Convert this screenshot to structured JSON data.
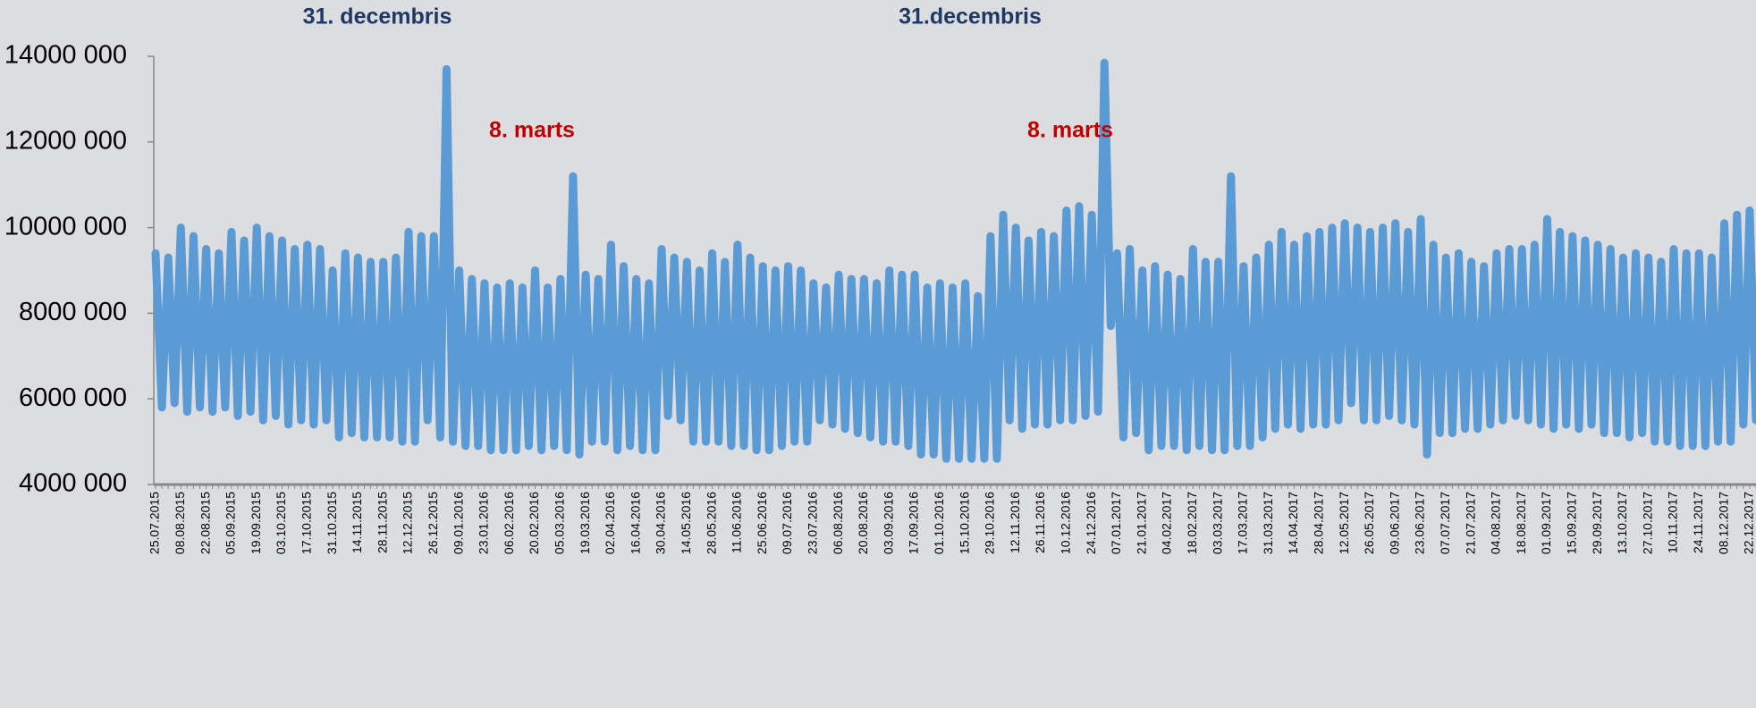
{
  "chart_data": {
    "type": "line",
    "annotations": [
      {
        "text": "31. decembris",
        "color": "#1f3864"
      },
      {
        "text": "8. marts",
        "color": "#c00000"
      },
      {
        "text": "31.decembris",
        "color": "#1f3864"
      },
      {
        "text": "8. marts",
        "color": "#c00000"
      }
    ],
    "categories": [
      "25.07.2015",
      null,
      null,
      null,
      "08.08.2015",
      null,
      null,
      null,
      "22.08.2015",
      null,
      null,
      null,
      "05.09.2015",
      null,
      null,
      null,
      "19.09.2015",
      null,
      null,
      null,
      "03.10.2015",
      null,
      null,
      null,
      "17.10.2015",
      null,
      null,
      null,
      "31.10.2015",
      null,
      null,
      null,
      "14.11.2015",
      null,
      null,
      null,
      "28.11.2015",
      null,
      null,
      null,
      "12.12.2015",
      null,
      null,
      null,
      "26.12.2015",
      null,
      null,
      null,
      "09.01.2016",
      null,
      null,
      null,
      "23.01.2016",
      null,
      null,
      null,
      "06.02.2016",
      null,
      null,
      null,
      "20.02.2016",
      null,
      null,
      null,
      "05.03.2016",
      null,
      null,
      null,
      "19.03.2016",
      null,
      null,
      null,
      "02.04.2016",
      null,
      null,
      null,
      "16.04.2016",
      null,
      null,
      null,
      "30.04.2016",
      null,
      null,
      null,
      "14.05.2016",
      null,
      null,
      null,
      "28.05.2016",
      null,
      null,
      null,
      "11.06.2016",
      null,
      null,
      null,
      "25.06.2016",
      null,
      null,
      null,
      "09.07.2016",
      null,
      null,
      null,
      "23.07.2016",
      null,
      null,
      null,
      "06.08.2016",
      null,
      null,
      null,
      "20.08.2016",
      null,
      null,
      null,
      "03.09.2016",
      null,
      null,
      null,
      "17.09.2016",
      null,
      null,
      null,
      "01.10.2016",
      null,
      null,
      null,
      "15.10.2016",
      null,
      null,
      null,
      "29.10.2016",
      null,
      null,
      null,
      "12.11.2016",
      null,
      null,
      null,
      "26.11.2016",
      null,
      null,
      null,
      "10.12.2016",
      null,
      null,
      null,
      "24.12.2016",
      null,
      null,
      null,
      "07.01.2017",
      null,
      null,
      null,
      "21.01.2017",
      null,
      null,
      null,
      "04.02.2017",
      null,
      null,
      null,
      "18.02.2017",
      null,
      null,
      null,
      "03.03.2017",
      null,
      null,
      null,
      "17.03.2017",
      null,
      null,
      null,
      "31.03.2017",
      null,
      null,
      null,
      "14.04.2017",
      null,
      null,
      null,
      "28.04.2017",
      null,
      null,
      null,
      "12.05.2017",
      null,
      null,
      null,
      "26.05.2017",
      null,
      null,
      null,
      "09.06.2017",
      null,
      null,
      null,
      "23.06.2017",
      null,
      null,
      null,
      "07.07.2017",
      null,
      null,
      null,
      "21.07.2017",
      null,
      null,
      null,
      "04.08.2017",
      null,
      null,
      null,
      "18.08.2017",
      null,
      null,
      null,
      "01.09.2017",
      null,
      null,
      null,
      "15.09.2017",
      null,
      null,
      null,
      "29.09.2017",
      null,
      null,
      null,
      "13.10.2017",
      null,
      null,
      null,
      "27.10.2017",
      null,
      null,
      null,
      "10.11.2017",
      null,
      null,
      null,
      "24.11.2017",
      null,
      null,
      null,
      "08.12.2017",
      null,
      null,
      null,
      "22.12.2017",
      null,
      null
    ],
    "series": [
      {
        "color": "#5b9bd5",
        "values": [
          9400000,
          5800000,
          9300000,
          5900000,
          10000000,
          5700000,
          9800000,
          5800000,
          9500000,
          5700000,
          9400000,
          5800000,
          9900000,
          5600000,
          9700000,
          5700000,
          10000000,
          5500000,
          9800000,
          5600000,
          9700000,
          5400000,
          9500000,
          5500000,
          9600000,
          5400000,
          9500000,
          5500000,
          9000000,
          5100000,
          9400000,
          5200000,
          9300000,
          5100000,
          9200000,
          5100000,
          9200000,
          5100000,
          9300000,
          5000000,
          9900000,
          5000000,
          9800000,
          5500000,
          9800000,
          5100000,
          13700000,
          5000000,
          9000000,
          4900000,
          8800000,
          4900000,
          8700000,
          4800000,
          8600000,
          4800000,
          8700000,
          4800000,
          8600000,
          4900000,
          9000000,
          4800000,
          8600000,
          4900000,
          8800000,
          4800000,
          11200000,
          4700000,
          8900000,
          5000000,
          8800000,
          5000000,
          9600000,
          4800000,
          9100000,
          4900000,
          8800000,
          4800000,
          8700000,
          4800000,
          9500000,
          5600000,
          9300000,
          5500000,
          9200000,
          5000000,
          9000000,
          5000000,
          9400000,
          5000000,
          9200000,
          4900000,
          9600000,
          4900000,
          9300000,
          4800000,
          9100000,
          4800000,
          9000000,
          4900000,
          9100000,
          5000000,
          9000000,
          5000000,
          8700000,
          5500000,
          8600000,
          5400000,
          8900000,
          5300000,
          8800000,
          5200000,
          8800000,
          5100000,
          8700000,
          5000000,
          9000000,
          5000000,
          8900000,
          4900000,
          8900000,
          4700000,
          8600000,
          4700000,
          8700000,
          4600000,
          8600000,
          4600000,
          8700000,
          4600000,
          8400000,
          4600000,
          9800000,
          4600000,
          10300000,
          5500000,
          10000000,
          5300000,
          9700000,
          5400000,
          9900000,
          5400000,
          9800000,
          5500000,
          10400000,
          5500000,
          10500000,
          5600000,
          10300000,
          5700000,
          13850000,
          7700000,
          9400000,
          5100000,
          9500000,
          5200000,
          9000000,
          4800000,
          9100000,
          4900000,
          8900000,
          4900000,
          8800000,
          4800000,
          9500000,
          4900000,
          9200000,
          4800000,
          9200000,
          4800000,
          11200000,
          4900000,
          9100000,
          4900000,
          9300000,
          5100000,
          9600000,
          5300000,
          9900000,
          5400000,
          9600000,
          5300000,
          9800000,
          5400000,
          9900000,
          5400000,
          10000000,
          5500000,
          10100000,
          5900000,
          10000000,
          5500000,
          9900000,
          5500000,
          10000000,
          5600000,
          10100000,
          5500000,
          9900000,
          5400000,
          10200000,
          4700000,
          9600000,
          5200000,
          9300000,
          5200000,
          9400000,
          5300000,
          9200000,
          5300000,
          9100000,
          5400000,
          9400000,
          5500000,
          9500000,
          5600000,
          9500000,
          5500000,
          9600000,
          5400000,
          10200000,
          5300000,
          9900000,
          5400000,
          9800000,
          5300000,
          9700000,
          5400000,
          9600000,
          5200000,
          9500000,
          5200000,
          9300000,
          5100000,
          9400000,
          5200000,
          9300000,
          5000000,
          9200000,
          5000000,
          9500000,
          4900000,
          9400000,
          4900000,
          9400000,
          4900000,
          9300000,
          5000000,
          10100000,
          5000000,
          10300000,
          5400000,
          10400000,
          5500000,
          8600000
        ]
      }
    ],
    "ylim": [
      4000000,
      14000000
    ],
    "yticks": [
      {
        "value": 4000000,
        "label": "4000 000"
      },
      {
        "value": 6000000,
        "label": "6000 000"
      },
      {
        "value": 8000000,
        "label": "8000 000"
      },
      {
        "value": 10000000,
        "label": "10000 000"
      },
      {
        "value": 12000000,
        "label": "12000 000"
      },
      {
        "value": 14000000,
        "label": "14000 000"
      }
    ],
    "grid": false
  }
}
